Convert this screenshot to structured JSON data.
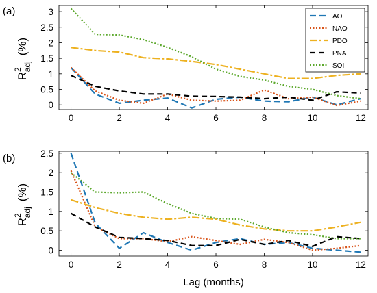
{
  "chart_data": [
    {
      "type": "line",
      "panel_label": "(a)",
      "ylabel": {
        "base": "R",
        "sup": "2",
        "sub": "adj",
        "unit": "(%)"
      },
      "xlim": [
        -0.5,
        12.3
      ],
      "ylim": [
        -0.15,
        3.2
      ],
      "xticks": [
        0,
        2,
        4,
        6,
        8,
        10,
        12
      ],
      "yticks": [
        0,
        0.5,
        1,
        1.5,
        2,
        2.5,
        3
      ],
      "ytick_labels": [
        "0",
        "0.5",
        "1",
        "1.5",
        "2",
        "2.5",
        "3"
      ],
      "legend": {
        "position": "top-right"
      },
      "x": [
        0,
        1,
        2,
        3,
        4,
        5,
        6,
        7,
        8,
        9,
        10,
        11,
        12
      ],
      "series": [
        {
          "name": "AO",
          "color": "#1f77b4",
          "dash": "9,5",
          "width": 2.2,
          "values": [
            1.2,
            0.35,
            0.05,
            0.15,
            0.22,
            -0.1,
            0.18,
            0.25,
            0.12,
            0.1,
            0.25,
            0.0,
            0.2
          ]
        },
        {
          "name": "NAO",
          "color": "#d9541a",
          "dash": "2,2.5",
          "width": 2.2,
          "values": [
            1.2,
            0.45,
            0.15,
            0.05,
            0.35,
            0.15,
            0.12,
            0.15,
            0.48,
            0.2,
            0.25,
            -0.02,
            0.12
          ]
        },
        {
          "name": "PDO",
          "color": "#edb120",
          "dash": "11,3,3,3",
          "width": 2.2,
          "values": [
            1.85,
            1.75,
            1.7,
            1.52,
            1.48,
            1.4,
            1.3,
            1.15,
            1.0,
            0.85,
            0.85,
            0.95,
            1.0
          ]
        },
        {
          "name": "PNA",
          "color": "#000000",
          "dash": "8,5",
          "width": 2.2,
          "values": [
            0.95,
            0.6,
            0.45,
            0.35,
            0.35,
            0.28,
            0.27,
            0.25,
            0.2,
            0.25,
            0.15,
            0.42,
            0.38
          ]
        },
        {
          "name": "SOI",
          "color": "#5ca82c",
          "dash": "2,2.5",
          "width": 2.2,
          "values": [
            3.1,
            2.27,
            2.25,
            2.1,
            1.85,
            1.55,
            1.15,
            0.92,
            0.8,
            0.6,
            0.5,
            0.3,
            0.2
          ]
        }
      ]
    },
    {
      "type": "line",
      "panel_label": "(b)",
      "ylabel": {
        "base": "R",
        "sup": "2",
        "sub": "adj",
        "unit": "(%)"
      },
      "xlabel": "Lag (months)",
      "xlim": [
        -0.5,
        12.3
      ],
      "ylim": [
        -0.15,
        2.55
      ],
      "xticks": [
        0,
        2,
        4,
        6,
        8,
        10,
        12
      ],
      "yticks": [
        0,
        0.5,
        1,
        1.5,
        2,
        2.5
      ],
      "ytick_labels": [
        "0",
        "0.5",
        "1",
        "1.5",
        "2",
        "2.5"
      ],
      "x": [
        0,
        1,
        2,
        3,
        4,
        5,
        6,
        7,
        8,
        9,
        10,
        11,
        12
      ],
      "series": [
        {
          "name": "AO",
          "color": "#1f77b4",
          "dash": "9,5",
          "width": 2.2,
          "values": [
            2.5,
            0.7,
            0.05,
            0.45,
            0.2,
            0.0,
            0.2,
            0.3,
            0.15,
            0.2,
            0.05,
            0.0,
            -0.05
          ]
        },
        {
          "name": "NAO",
          "color": "#d9541a",
          "dash": "2,2.5",
          "width": 2.2,
          "values": [
            2.05,
            0.6,
            0.3,
            0.3,
            0.22,
            0.35,
            0.25,
            0.15,
            0.28,
            0.2,
            0.0,
            0.05,
            0.12
          ]
        },
        {
          "name": "PDO",
          "color": "#edb120",
          "dash": "11,3,3,3",
          "width": 2.2,
          "values": [
            1.3,
            1.1,
            0.95,
            0.85,
            0.8,
            0.85,
            0.8,
            0.65,
            0.55,
            0.5,
            0.5,
            0.6,
            0.72
          ]
        },
        {
          "name": "PNA",
          "color": "#000000",
          "dash": "8,5",
          "width": 2.2,
          "values": [
            0.95,
            0.6,
            0.33,
            0.3,
            0.25,
            0.12,
            0.12,
            0.28,
            0.15,
            0.25,
            0.1,
            0.35,
            0.3
          ]
        },
        {
          "name": "SOI",
          "color": "#5ca82c",
          "dash": "2,2.5",
          "width": 2.2,
          "values": [
            2.0,
            1.5,
            1.48,
            1.5,
            1.2,
            0.95,
            0.82,
            0.8,
            0.6,
            0.45,
            0.4,
            0.3,
            0.3
          ]
        }
      ]
    }
  ]
}
